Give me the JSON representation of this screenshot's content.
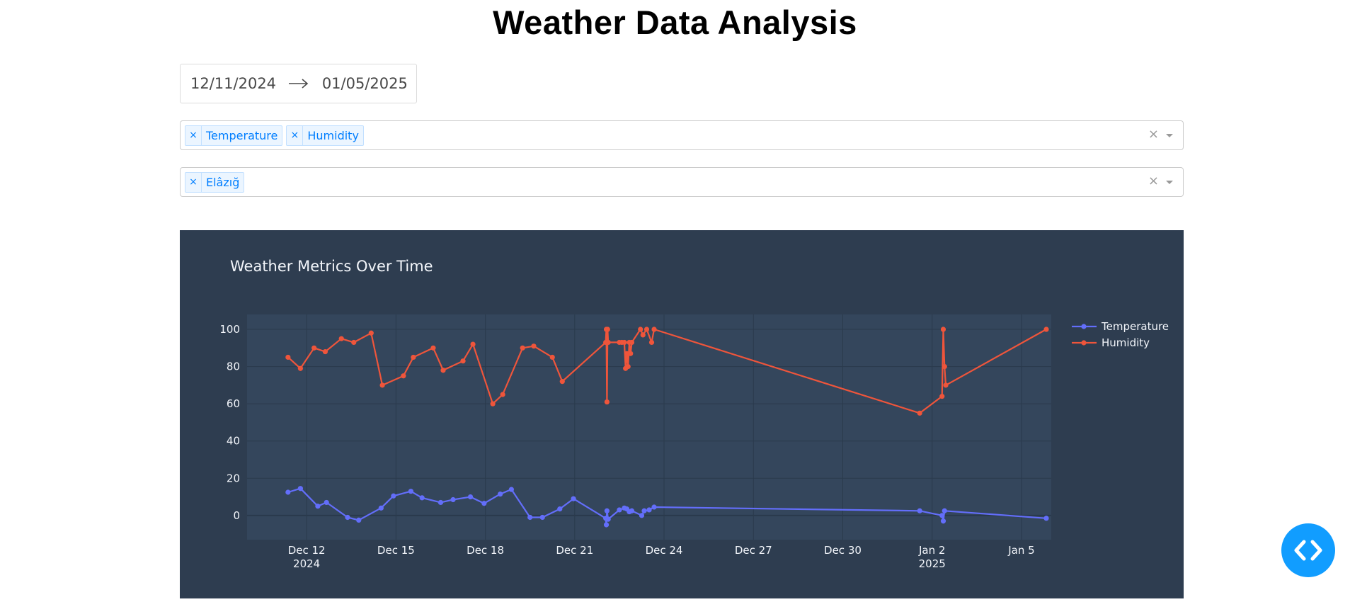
{
  "page": {
    "title": "Weather Data Analysis"
  },
  "date_range": {
    "start": "12/11/2024",
    "end": "01/05/2025"
  },
  "metrics_dropdown": {
    "selected": [
      "Temperature",
      "Humidity"
    ],
    "remove_symbol": "×",
    "clear_symbol": "×"
  },
  "city_dropdown": {
    "selected": [
      "Elâzığ"
    ],
    "remove_symbol": "×",
    "clear_symbol": "×"
  },
  "colors": {
    "temperature": "#636efa",
    "humidity": "#ef553b",
    "plot_bg": "#34465c",
    "paper_bg": "#2e3d50",
    "accent": "#119dff"
  },
  "chart_data": {
    "type": "line",
    "title": "Weather Metrics Over Time",
    "xlabel": "",
    "ylabel": "",
    "x_range": [
      "2024-12-10",
      "2025-01-06"
    ],
    "ylim": [
      -13,
      108
    ],
    "yticks": [
      0,
      20,
      40,
      60,
      80,
      100
    ],
    "xticks": [
      {
        "date": "2024-12-12",
        "label": "Dec 12",
        "sublabel": "2024"
      },
      {
        "date": "2024-12-15",
        "label": "Dec 15",
        "sublabel": ""
      },
      {
        "date": "2024-12-18",
        "label": "Dec 18",
        "sublabel": ""
      },
      {
        "date": "2024-12-21",
        "label": "Dec 21",
        "sublabel": ""
      },
      {
        "date": "2024-12-24",
        "label": "Dec 24",
        "sublabel": ""
      },
      {
        "date": "2024-12-27",
        "label": "Dec 27",
        "sublabel": ""
      },
      {
        "date": "2024-12-30",
        "label": "Dec 30",
        "sublabel": ""
      },
      {
        "date": "2025-01-02",
        "label": "Jan 2",
        "sublabel": "2025"
      },
      {
        "date": "2025-01-05",
        "label": "Jan 5",
        "sublabel": ""
      }
    ],
    "grid": true,
    "legend_position": "top-right",
    "series": [
      {
        "name": "Temperature",
        "color": "#636efa",
        "points": [
          [
            "2024-12-11 09:00",
            12.5
          ],
          [
            "2024-12-11 19:00",
            14.5
          ],
          [
            "2024-12-12 09:00",
            5
          ],
          [
            "2024-12-12 16:00",
            7
          ],
          [
            "2024-12-13 09:00",
            -1
          ],
          [
            "2024-12-13 18:00",
            -2.5
          ],
          [
            "2024-12-14 12:00",
            4
          ],
          [
            "2024-12-14 22:00",
            10.5
          ],
          [
            "2024-12-15 12:00",
            13
          ],
          [
            "2024-12-15 21:00",
            9.5
          ],
          [
            "2024-12-16 12:00",
            7
          ],
          [
            "2024-12-16 22:00",
            8.5
          ],
          [
            "2024-12-17 12:00",
            10
          ],
          [
            "2024-12-17 23:00",
            6.5
          ],
          [
            "2024-12-18 12:00",
            11.5
          ],
          [
            "2024-12-18 21:00",
            14
          ],
          [
            "2024-12-19 12:00",
            -1
          ],
          [
            "2024-12-19 22:00",
            -1
          ],
          [
            "2024-12-20 12:00",
            3.5
          ],
          [
            "2024-12-20 23:00",
            9
          ],
          [
            "2024-12-22 01:00",
            -1.5
          ],
          [
            "2024-12-22 01:30",
            -5
          ],
          [
            "2024-12-22 02:00",
            2.5
          ],
          [
            "2024-12-22 03:00",
            -2
          ],
          [
            "2024-12-22 12:00",
            3
          ],
          [
            "2024-12-22 16:00",
            4
          ],
          [
            "2024-12-22 18:00",
            3.5
          ],
          [
            "2024-12-22 20:00",
            2
          ],
          [
            "2024-12-22 22:00",
            2.5
          ],
          [
            "2024-12-23 06:00",
            0
          ],
          [
            "2024-12-23 08:00",
            2.5
          ],
          [
            "2024-12-23 12:00",
            3
          ],
          [
            "2024-12-23 16:00",
            4.5
          ],
          [
            "2025-01-01 14:00",
            2.5
          ],
          [
            "2025-01-02 08:00",
            0
          ],
          [
            "2025-01-02 09:00",
            -3
          ],
          [
            "2025-01-02 10:00",
            2.5
          ],
          [
            "2025-01-05 20:00",
            -1.5
          ]
        ]
      },
      {
        "name": "Humidity",
        "color": "#ef553b",
        "points": [
          [
            "2024-12-11 09:00",
            85
          ],
          [
            "2024-12-11 19:00",
            79
          ],
          [
            "2024-12-12 06:00",
            90
          ],
          [
            "2024-12-12 15:00",
            88
          ],
          [
            "2024-12-13 04:00",
            95
          ],
          [
            "2024-12-13 14:00",
            93
          ],
          [
            "2024-12-14 04:00",
            98
          ],
          [
            "2024-12-14 13:00",
            70
          ],
          [
            "2024-12-15 06:00",
            75
          ],
          [
            "2024-12-15 14:00",
            85
          ],
          [
            "2024-12-16 06:00",
            90
          ],
          [
            "2024-12-16 14:00",
            78
          ],
          [
            "2024-12-17 06:00",
            83
          ],
          [
            "2024-12-17 14:00",
            92
          ],
          [
            "2024-12-18 06:00",
            60
          ],
          [
            "2024-12-18 14:00",
            65
          ],
          [
            "2024-12-19 06:00",
            90
          ],
          [
            "2024-12-19 15:00",
            91
          ],
          [
            "2024-12-20 06:00",
            85
          ],
          [
            "2024-12-20 14:00",
            72
          ],
          [
            "2024-12-22 01:00",
            93
          ],
          [
            "2024-12-22 01:30",
            100
          ],
          [
            "2024-12-22 02:00",
            61
          ],
          [
            "2024-12-22 02:30",
            100
          ],
          [
            "2024-12-22 03:00",
            93
          ],
          [
            "2024-12-22 12:00",
            93
          ],
          [
            "2024-12-22 14:00",
            93
          ],
          [
            "2024-12-22 16:00",
            93
          ],
          [
            "2024-12-22 17:00",
            79
          ],
          [
            "2024-12-22 18:00",
            87
          ],
          [
            "2024-12-22 19:00",
            80
          ],
          [
            "2024-12-22 20:00",
            93
          ],
          [
            "2024-12-22 21:00",
            87
          ],
          [
            "2024-12-22 22:00",
            93
          ],
          [
            "2024-12-23 05:00",
            100
          ],
          [
            "2024-12-23 07:00",
            97
          ],
          [
            "2024-12-23 10:00",
            100
          ],
          [
            "2024-12-23 14:00",
            93
          ],
          [
            "2024-12-23 16:00",
            100
          ],
          [
            "2025-01-01 14:00",
            55
          ],
          [
            "2025-01-02 08:00",
            64
          ],
          [
            "2025-01-02 09:00",
            100
          ],
          [
            "2025-01-02 10:00",
            80
          ],
          [
            "2025-01-02 11:00",
            70
          ],
          [
            "2025-01-05 20:00",
            100
          ]
        ]
      }
    ]
  }
}
